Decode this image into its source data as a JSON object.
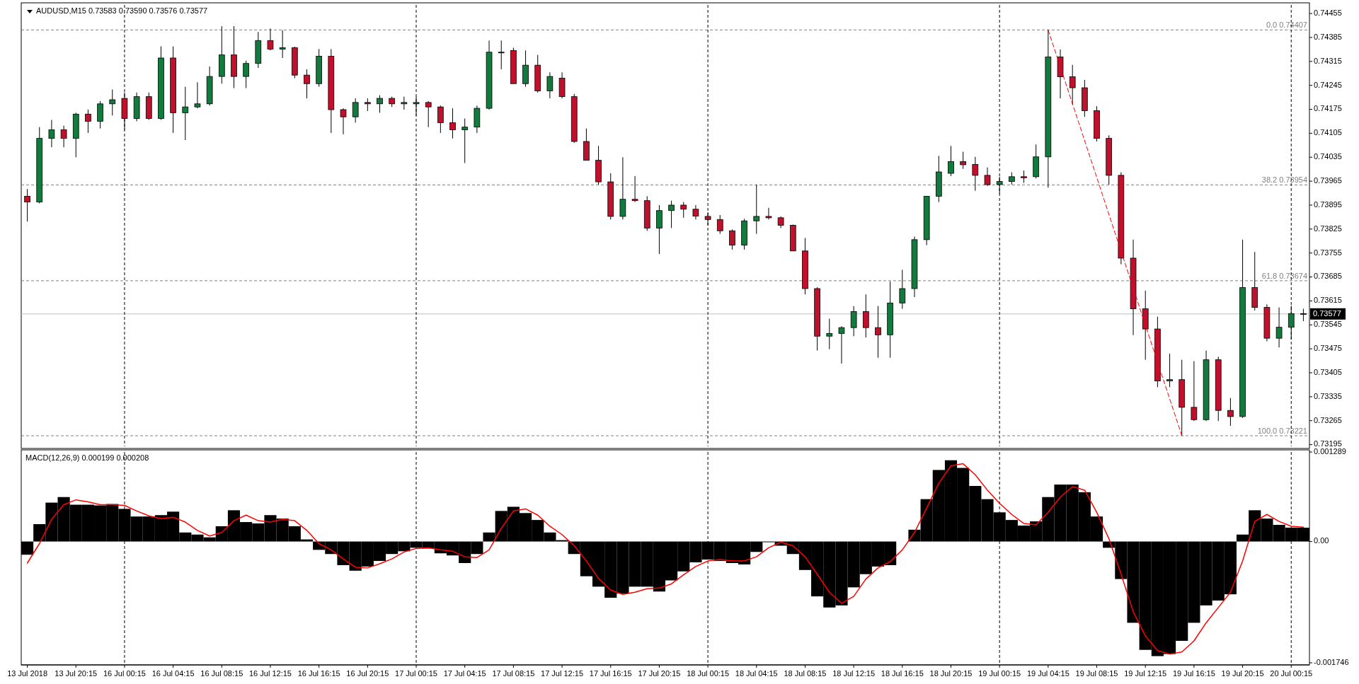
{
  "chart_data": [
    {
      "type": "candlestick",
      "title": "AUDUSD,M15  0.73583 0.73590 0.73576 0.73577",
      "categories": [
        "13 Jul 2018",
        null,
        null,
        null,
        "13 Jul 20:15",
        null,
        null,
        null,
        "16 Jul 00:15",
        null,
        null,
        null,
        "16 Jul 04:15",
        null,
        null,
        null,
        "16 Jul 08:15",
        null,
        null,
        null,
        "16 Jul 12:15",
        null,
        null,
        null,
        "16 Jul 16:15",
        null,
        null,
        null,
        "16 Jul 20:15",
        null,
        null,
        null,
        "17 Jul 00:15",
        null,
        null,
        null,
        "17 Jul 04:15",
        null,
        null,
        null,
        "17 Jul 08:15",
        null,
        null,
        null,
        "17 Jul 12:15",
        null,
        null,
        null,
        "17 Jul 16:15",
        null,
        null,
        null,
        "17 Jul 20:15",
        null,
        null,
        null,
        "18 Jul 00:15",
        null,
        null,
        null,
        "18 Jul 04:15",
        null,
        null,
        null,
        "18 Jul 08:15",
        null,
        null,
        null,
        "18 Jul 12:15",
        null,
        null,
        null,
        "18 Jul 16:15",
        null,
        null,
        null,
        "18 Jul 20:15",
        null,
        null,
        null,
        "19 Jul 00:15",
        null,
        null,
        null,
        "19 Jul 04:15",
        null,
        null,
        null,
        "19 Jul 08:15",
        null,
        null,
        null,
        "19 Jul 12:15",
        null,
        null,
        null,
        "19 Jul 16:15",
        null,
        null,
        null,
        "19 Jul 20:15",
        null,
        null,
        null,
        "20 Jul 00:15",
        null
      ],
      "ohlc": [
        [
          0.73921,
          0.73942,
          0.73847,
          0.73904
        ],
        [
          0.73904,
          0.74123,
          0.739,
          0.7409
        ],
        [
          0.7409,
          0.74144,
          0.74064,
          0.74115
        ],
        [
          0.74115,
          0.74127,
          0.74064,
          0.7409
        ],
        [
          0.7409,
          0.74165,
          0.74035,
          0.74161
        ],
        [
          0.74161,
          0.74174,
          0.74106,
          0.7414
        ],
        [
          0.7414,
          0.74199,
          0.74119,
          0.74191
        ],
        [
          0.74191,
          0.74233,
          0.74157,
          0.74203
        ],
        [
          0.74207,
          0.74224,
          0.74115,
          0.74148
        ],
        [
          0.74148,
          0.74224,
          0.7414,
          0.74212
        ],
        [
          0.74212,
          0.74224,
          0.74144,
          0.74148
        ],
        [
          0.74148,
          0.74359,
          0.74144,
          0.74325
        ],
        [
          0.74325,
          0.74359,
          0.74106,
          0.74165
        ],
        [
          0.74165,
          0.74241,
          0.74085,
          0.74182
        ],
        [
          0.74182,
          0.74254,
          0.74178,
          0.74191
        ],
        [
          0.74191,
          0.743,
          0.74186,
          0.74271
        ],
        [
          0.74271,
          0.74418,
          0.7425,
          0.74334
        ],
        [
          0.74334,
          0.74418,
          0.74237,
          0.74271
        ],
        [
          0.74271,
          0.74317,
          0.74237,
          0.74309
        ],
        [
          0.74309,
          0.74401,
          0.74296,
          0.74376
        ],
        [
          0.74376,
          0.74411,
          0.74347,
          0.74351
        ],
        [
          0.74351,
          0.74406,
          0.74325,
          0.74355
        ],
        [
          0.74355,
          0.74358,
          0.74266,
          0.74275
        ],
        [
          0.74275,
          0.74292,
          0.74207,
          0.7425
        ],
        [
          0.7425,
          0.74351,
          0.74241,
          0.7433
        ],
        [
          0.7433,
          0.74351,
          0.74106,
          0.74174
        ],
        [
          0.74174,
          0.74178,
          0.74102,
          0.74153
        ],
        [
          0.74153,
          0.74207,
          0.74136,
          0.74195
        ],
        [
          0.74195,
          0.74207,
          0.7417,
          0.74191
        ],
        [
          0.74191,
          0.74216,
          0.74165,
          0.74207
        ],
        [
          0.74207,
          0.74212,
          0.74182,
          0.74191
        ],
        [
          0.74191,
          0.74212,
          0.74174,
          0.74195
        ],
        [
          0.74191,
          0.74212,
          0.74157,
          0.74195
        ],
        [
          0.74195,
          0.74199,
          0.74123,
          0.74182
        ],
        [
          0.74182,
          0.74186,
          0.74106,
          0.74136
        ],
        [
          0.74136,
          0.74178,
          0.7409,
          0.74115
        ],
        [
          0.74115,
          0.74148,
          0.74018,
          0.74123
        ],
        [
          0.74123,
          0.74186,
          0.74106,
          0.74178
        ],
        [
          0.74178,
          0.74376,
          0.74174,
          0.74342
        ],
        [
          0.74342,
          0.74376,
          0.74292,
          0.74342
        ],
        [
          0.74347,
          0.74355,
          0.7425,
          0.7425
        ],
        [
          0.7425,
          0.74347,
          0.74241,
          0.74304
        ],
        [
          0.74304,
          0.74334,
          0.74224,
          0.74229
        ],
        [
          0.74229,
          0.74283,
          0.74207,
          0.74271
        ],
        [
          0.74266,
          0.74283,
          0.74207,
          0.74212
        ],
        [
          0.74212,
          0.7422,
          0.74077,
          0.74081
        ],
        [
          0.74081,
          0.74119,
          0.74026,
          0.74026
        ],
        [
          0.74026,
          0.74068,
          0.73955,
          0.73963
        ],
        [
          0.73963,
          0.73988,
          0.73853,
          0.73862
        ],
        [
          0.73862,
          0.74035,
          0.73853,
          0.73912
        ],
        [
          0.73912,
          0.7398,
          0.73904,
          0.73908
        ],
        [
          0.73908,
          0.73921,
          0.7382,
          0.73828
        ],
        [
          0.73828,
          0.73895,
          0.73752,
          0.73879
        ],
        [
          0.73879,
          0.73908,
          0.73828,
          0.73895
        ],
        [
          0.73895,
          0.73904,
          0.73858,
          0.73883
        ],
        [
          0.73883,
          0.73895,
          0.73853,
          0.73863
        ],
        [
          0.73862,
          0.73874,
          0.73836,
          0.73853
        ],
        [
          0.73853,
          0.73866,
          0.73811,
          0.7382
        ],
        [
          0.7382,
          0.73824,
          0.73765,
          0.73778
        ],
        [
          0.73778,
          0.73855,
          0.73765,
          0.73849
        ],
        [
          0.73849,
          0.73955,
          0.73811,
          0.73862
        ],
        [
          0.73862,
          0.73887,
          0.73853,
          0.73858
        ],
        [
          0.73858,
          0.73862,
          0.73828,
          0.73836
        ],
        [
          0.73836,
          0.73838,
          0.73761,
          0.73761
        ],
        [
          0.73761,
          0.73799,
          0.73634,
          0.73651
        ],
        [
          0.73651,
          0.73655,
          0.7347,
          0.73512
        ],
        [
          0.73512,
          0.73563,
          0.73474,
          0.7352
        ],
        [
          0.7352,
          0.73541,
          0.73432,
          0.73537
        ],
        [
          0.73537,
          0.736,
          0.73512,
          0.73584
        ],
        [
          0.73584,
          0.73634,
          0.73508,
          0.73537
        ],
        [
          0.73537,
          0.736,
          0.73449,
          0.73516
        ],
        [
          0.73516,
          0.73672,
          0.73449,
          0.73609
        ],
        [
          0.73609,
          0.73706,
          0.73592,
          0.73651
        ],
        [
          0.73651,
          0.73803,
          0.73626,
          0.73794
        ],
        [
          0.73794,
          0.73921,
          0.73778,
          0.73921
        ],
        [
          0.73921,
          0.74039,
          0.73904,
          0.73992
        ],
        [
          0.73988,
          0.74068,
          0.7398,
          0.74022
        ],
        [
          0.74022,
          0.74051,
          0.74001,
          0.74013
        ],
        [
          0.74014,
          0.74036,
          0.73937,
          0.73982
        ],
        [
          0.73982,
          0.74005,
          0.73951,
          0.73955
        ],
        [
          0.73955,
          0.73978,
          0.73928,
          0.73964
        ],
        [
          0.73964,
          0.73991,
          0.73955,
          0.73978
        ],
        [
          0.73978,
          0.73996,
          0.7396,
          0.73975
        ],
        [
          0.73978,
          0.74072,
          0.73973,
          0.74036
        ],
        [
          0.74036,
          0.74407,
          0.73946,
          0.74328
        ],
        [
          0.74328,
          0.7435,
          0.74207,
          0.7427
        ],
        [
          0.7427,
          0.74305,
          0.74189,
          0.74238
        ],
        [
          0.74238,
          0.74261,
          0.74153,
          0.74171
        ],
        [
          0.74171,
          0.74184,
          0.74081,
          0.7409
        ],
        [
          0.7409,
          0.74099,
          0.73955,
          0.73982
        ],
        [
          0.73982,
          0.73991,
          0.73722,
          0.7374
        ],
        [
          0.7374,
          0.73794,
          0.73515,
          0.73592
        ],
        [
          0.73592,
          0.73645,
          0.73443,
          0.73533
        ],
        [
          0.73533,
          0.73569,
          0.73363,
          0.73381
        ],
        [
          0.73381,
          0.73461,
          0.73363,
          0.73385
        ],
        [
          0.73385,
          0.73443,
          0.73221,
          0.73304
        ],
        [
          0.73304,
          0.73439,
          0.73264,
          0.73268
        ],
        [
          0.73268,
          0.7347,
          0.73264,
          0.73443
        ],
        [
          0.73443,
          0.73452,
          0.73264,
          0.73295
        ],
        [
          0.73295,
          0.73331,
          0.7325,
          0.73277
        ],
        [
          0.73277,
          0.73794,
          0.73273,
          0.73654
        ],
        [
          0.73654,
          0.73758,
          0.73587,
          0.73596
        ],
        [
          0.73596,
          0.73605,
          0.73497,
          0.73506
        ],
        [
          0.73506,
          0.73596,
          0.73479,
          0.73538
        ],
        [
          0.73538,
          0.73601,
          0.73502,
          0.73578
        ],
        [
          0.73578,
          0.73592,
          0.73556,
          0.73577
        ]
      ],
      "colors": [
        "#c0102c",
        "#127a3d",
        "#127a3d",
        "#c0102c",
        "#127a3d",
        "#c0102c",
        "#127a3d",
        "#127a3d",
        "#c0102c",
        "#127a3d",
        "#c0102c",
        "#127a3d",
        "#c0102c",
        "#127a3d",
        "#127a3d",
        "#127a3d",
        "#127a3d",
        "#c0102c",
        "#127a3d",
        "#127a3d",
        "#c0102c",
        "#127a3d",
        "#c0102c",
        "#c0102c",
        "#127a3d",
        "#c0102c",
        "#c0102c",
        "#127a3d",
        "#c0102c",
        "#127a3d",
        "#c0102c",
        "#127a3d",
        "#127a3d",
        "#c0102c",
        "#c0102c",
        "#c0102c",
        "#127a3d",
        "#127a3d",
        "#127a3d",
        "#127a3d",
        "#c0102c",
        "#127a3d",
        "#c0102c",
        "#127a3d",
        "#c0102c",
        "#c0102c",
        "#c0102c",
        "#c0102c",
        "#c0102c",
        "#127a3d",
        "#c0102c",
        "#c0102c",
        "#127a3d",
        "#127a3d",
        "#c0102c",
        "#c0102c",
        "#c0102c",
        "#c0102c",
        "#c0102c",
        "#127a3d",
        "#127a3d",
        "#c0102c",
        "#c0102c",
        "#c0102c",
        "#c0102c",
        "#c0102c",
        "#127a3d",
        "#127a3d",
        "#127a3d",
        "#c0102c",
        "#c0102c",
        "#127a3d",
        "#127a3d",
        "#127a3d",
        "#127a3d",
        "#127a3d",
        "#127a3d",
        "#c0102c",
        "#c0102c",
        "#c0102c",
        "#127a3d",
        "#127a3d",
        "#c0102c",
        "#127a3d",
        "#127a3d",
        "#c0102c",
        "#c0102c",
        "#c0102c",
        "#c0102c",
        "#c0102c",
        "#c0102c",
        "#c0102c",
        "#c0102c",
        "#c0102c",
        "#127a3d",
        "#c0102c",
        "#c0102c",
        "#127a3d",
        "#c0102c",
        "#c0102c",
        "#127a3d",
        "#c0102c",
        "#c0102c",
        "#127a3d",
        "#127a3d",
        "#c0102c"
      ],
      "series": [
        {
          "type": "line",
          "color": "#ff0000",
          "line_style": "dotted",
          "values": [
            null,
            null,
            null,
            null,
            null,
            null,
            null,
            null,
            null,
            null,
            null,
            null,
            null,
            null,
            null,
            null,
            null,
            null,
            null,
            null,
            null,
            null,
            null,
            null,
            null,
            null,
            null,
            null,
            null,
            null,
            null,
            null,
            null,
            null,
            null,
            null,
            null,
            null,
            null,
            null,
            null,
            null,
            null,
            null,
            null,
            null,
            null,
            null,
            null,
            null,
            null,
            null,
            null,
            null,
            null,
            null,
            null,
            null,
            null,
            null,
            null,
            null,
            null,
            null,
            null,
            null,
            null,
            null,
            null,
            null,
            null,
            null,
            null,
            null,
            null,
            null,
            null,
            null,
            null,
            null,
            null,
            null,
            null,
            null,
            0.74407,
            null,
            null,
            null,
            null,
            null,
            null,
            null,
            null,
            null,
            null,
            0.73221,
            null,
            null,
            null,
            null,
            null,
            null,
            null,
            null,
            null,
            null
          ]
        }
      ],
      "ylim": [
        0.7319,
        0.7448
      ],
      "yticks": [
        0.74455,
        0.74385,
        0.74315,
        0.74245,
        0.74175,
        0.74105,
        0.74035,
        0.73965,
        0.73895,
        0.73825,
        0.73755,
        0.73685,
        0.73615,
        0.73545,
        0.73475,
        0.73405,
        0.73335,
        0.73265,
        0.73195
      ],
      "ref_lines": [
        {
          "axis": "y",
          "value": 0.74407,
          "label": "0.0 0.74407",
          "color": "#808080",
          "line_style": "dashed"
        },
        {
          "axis": "y",
          "value": 0.73954,
          "label": "38.2 0.73954",
          "color": "#808080",
          "line_style": "dashed"
        },
        {
          "axis": "y",
          "value": 0.73674,
          "label": "61.8 0.73674",
          "color": "#808080",
          "line_style": "dashed"
        },
        {
          "axis": "y",
          "value": 0.73221,
          "label": "100.0 0.73221",
          "color": "#808080",
          "line_style": "dashed"
        },
        {
          "axis": "y",
          "value": 0.73577,
          "label": "0.73577",
          "color": "#c0c0c0",
          "line_style": "solid"
        },
        {
          "axis": "x",
          "value": "16 Jul 00:15",
          "color": "#000000",
          "line_style": "dashed"
        },
        {
          "axis": "x",
          "value": "17 Jul 00:15",
          "color": "#000000",
          "line_style": "dashed"
        },
        {
          "axis": "x",
          "value": "18 Jul 00:15",
          "color": "#000000",
          "line_style": "dashed"
        },
        {
          "axis": "x",
          "value": "19 Jul 00:15",
          "color": "#000000",
          "line_style": "dashed"
        },
        {
          "axis": "x",
          "value": "20 Jul 00:15",
          "color": "#000000",
          "line_style": "dashed"
        }
      ],
      "tick_labels": "y"
    },
    {
      "type": "bar",
      "title": "MACD(12,26,9) 0.000199 0.000208",
      "categories": [
        "13 Jul 2018",
        null,
        null,
        null,
        "13 Jul 20:15",
        null,
        null,
        null,
        "16 Jul 00:15",
        null,
        null,
        null,
        "16 Jul 04:15",
        null,
        null,
        null,
        "16 Jul 08:15",
        null,
        null,
        null,
        "16 Jul 12:15",
        null,
        null,
        null,
        "16 Jul 16:15",
        null,
        null,
        null,
        "16 Jul 20:15",
        null,
        null,
        null,
        "17 Jul 00:15",
        null,
        null,
        null,
        "17 Jul 04:15",
        null,
        null,
        null,
        "17 Jul 08:15",
        null,
        null,
        null,
        "17 Jul 12:15",
        null,
        null,
        null,
        "17 Jul 16:15",
        null,
        null,
        null,
        "17 Jul 20:15",
        null,
        null,
        null,
        "18 Jul 00:15",
        null,
        null,
        null,
        "18 Jul 04:15",
        null,
        null,
        null,
        "18 Jul 08:15",
        null,
        null,
        null,
        "18 Jul 12:15",
        null,
        null,
        null,
        "18 Jul 16:15",
        null,
        null,
        null,
        "18 Jul 20:15",
        null,
        null,
        null,
        "19 Jul 00:15",
        null,
        null,
        null,
        "19 Jul 04:15",
        null,
        null,
        null,
        "19 Jul 08:15",
        null,
        null,
        null,
        "19 Jul 12:15",
        null,
        null,
        null,
        "19 Jul 16:15",
        null,
        null,
        null,
        "19 Jul 20:15",
        null,
        null,
        null,
        "20 Jul 00:15",
        null
      ],
      "series": [
        {
          "type": "bar",
          "color": "#000000",
          "values": [
            -0.00019,
            0.00025,
            0.00056,
            0.00064,
            0.00053,
            0.00053,
            0.00052,
            0.00054,
            0.00047,
            0.00036,
            0.00036,
            0.00038,
            0.00043,
            0.00013,
            0.0001,
            6e-05,
            0.00022,
            0.00045,
            0.00028,
            0.00026,
            0.00038,
            0.00033,
            0.00022,
            3e-05,
            -0.00012,
            -0.00018,
            -0.00034,
            -0.00042,
            -0.00036,
            -0.00028,
            -0.00018,
            -0.00014,
            -9e-05,
            -0.0001,
            -0.00017,
            -0.0002,
            -0.00031,
            -0.00018,
            0.00013,
            0.00044,
            0.0005,
            0.00041,
            0.00031,
            0.00013,
            2e-05,
            -0.00018,
            -0.0005,
            -0.00065,
            -0.00081,
            -0.00075,
            -0.00065,
            -0.00065,
            -0.00072,
            -0.00056,
            -0.00043,
            -0.0003,
            -0.00026,
            -0.00028,
            -0.00031,
            -0.00033,
            -0.00015,
            -1e-05,
            -6e-05,
            -0.00018,
            -0.00041,
            -0.00079,
            -0.00095,
            -0.00092,
            -0.00066,
            -0.00047,
            -0.00036,
            -0.00034,
            0,
            0.00017,
            0.00061,
            0.00103,
            0.00117,
            0.00106,
            0.0008,
            0.00061,
            0.00042,
            0.00031,
            0.00023,
            0.00029,
            0.00064,
            0.00082,
            0.00082,
            0.00071,
            0.00036,
            -9e-05,
            -0.00054,
            -0.00117,
            -0.00156,
            -0.00165,
            -0.00162,
            -0.00143,
            -0.00117,
            -0.00092,
            -0.00085,
            -0.00076,
            0.0001,
            0.00045,
            0.00033,
            0.00024,
            0.0002,
            0.000199
          ]
        },
        {
          "type": "line",
          "color": "#ff0000",
          "values": [
            -0.00031,
            -3e-05,
            0.00032,
            0.00053,
            0.0006,
            0.00057,
            0.00053,
            0.00053,
            0.00052,
            0.00044,
            0.00037,
            0.00033,
            0.00035,
            0.00028,
            0.00016,
            8e-05,
            0.00013,
            0.0003,
            0.00038,
            0.0003,
            0.00028,
            0.00032,
            0.0003,
            0.00016,
            -3e-05,
            -0.00012,
            -0.00025,
            -0.00037,
            -0.00038,
            -0.00032,
            -0.00025,
            -0.00015,
            -0.0001,
            -9e-05,
            -0.00012,
            -0.00014,
            -0.00022,
            -0.00023,
            -0.00012,
            0.00019,
            0.00044,
            0.00047,
            0.00038,
            0.00022,
            0.0001,
            -6e-05,
            -0.00028,
            -0.00053,
            -0.0007,
            -0.00076,
            -0.00073,
            -0.00068,
            -0.00067,
            -0.00061,
            -0.00048,
            -0.00036,
            -0.00028,
            -0.00026,
            -0.00028,
            -0.00028,
            -0.00022,
            -9e-05,
            -1e-05,
            -6e-05,
            -0.00022,
            -0.00047,
            -0.00073,
            -0.00089,
            -0.00079,
            -0.00054,
            -0.00038,
            -0.00029,
            -0.00012,
            0.00013,
            0.00048,
            0.00084,
            0.00109,
            0.00112,
            0.00096,
            0.00074,
            0.00055,
            0.00039,
            0.00026,
            0.00024,
            0.00042,
            0.00064,
            0.00079,
            0.00074,
            0.00042,
            4e-05,
            -0.00047,
            -0.00101,
            -0.00136,
            -0.00157,
            -0.00162,
            -0.00159,
            -0.00143,
            -0.00117,
            -0.00095,
            -0.00073,
            -0.00028,
            0.00029,
            0.00039,
            0.00029,
            0.00022,
            0.000208
          ]
        }
      ],
      "ylim": [
        -0.001746,
        0.001289
      ],
      "yticks": [
        0.001289,
        {
          "value": 0,
          "label": "0.00"
        },
        -0.001746
      ],
      "ref_lines": [
        {
          "axis": "x",
          "value": "16 Jul 00:15",
          "color": "#000000",
          "line_style": "dashed"
        },
        {
          "axis": "x",
          "value": "17 Jul 00:15",
          "color": "#000000",
          "line_style": "dashed"
        },
        {
          "axis": "x",
          "value": "18 Jul 00:15",
          "color": "#000000",
          "line_style": "dashed"
        },
        {
          "axis": "x",
          "value": "19 Jul 00:15",
          "color": "#000000",
          "line_style": "dashed"
        },
        {
          "axis": "x",
          "value": "20 Jul 00:15",
          "color": "#000000",
          "line_style": "dashed"
        }
      ]
    }
  ]
}
